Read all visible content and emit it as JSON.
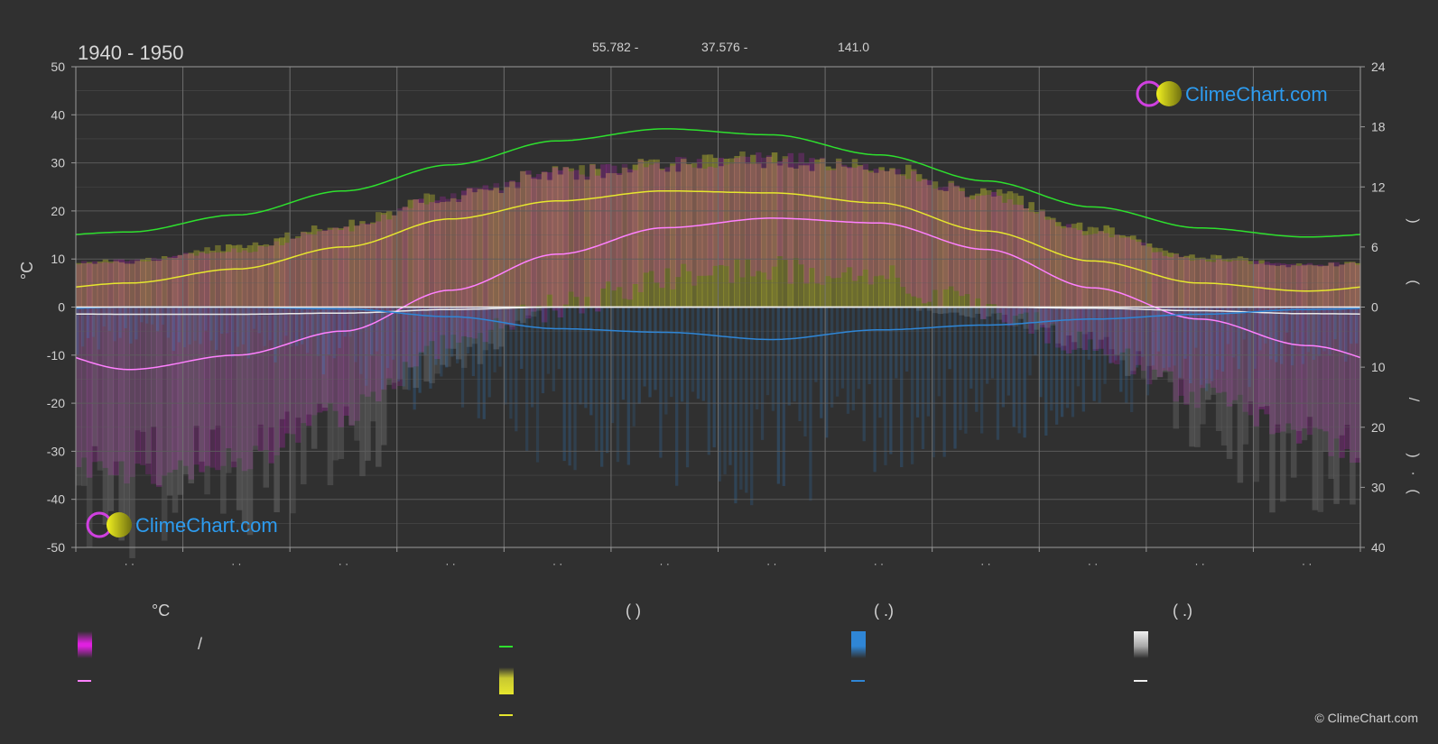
{
  "header": {
    "period": "1940 - 1950",
    "lat": "55.782 -",
    "lon": "37.576 -",
    "elev": "141.0"
  },
  "brand": {
    "name": "ClimeChart.com",
    "copyright": "© ClimeChart.com"
  },
  "colors": {
    "background": "#303030",
    "daylight": "#2ee02e",
    "sunshine": "#e6e62e",
    "temp_max": "#ff80ff",
    "temp_band": "#e020e0",
    "precip": "#2f86d6",
    "snow": "#e8e8e8",
    "brand_text": "#2d9cf0"
  },
  "chart_data": {
    "type": "line",
    "left_axis": {
      "unit": "°C",
      "ylim": [
        -50,
        50
      ],
      "ticks": [
        50,
        40,
        30,
        20,
        10,
        0,
        -10,
        -20,
        -30,
        -40,
        -50
      ]
    },
    "right_axis_top": {
      "ylim": [
        0,
        24
      ],
      "ticks": [
        24,
        18,
        12,
        6,
        0
      ],
      "label_glyphs": [
        "(",
        ")"
      ]
    },
    "right_axis_bottom": {
      "ylim": [
        0,
        40
      ],
      "ticks": [
        0,
        10,
        20,
        30,
        40
      ],
      "label_glyphs": [
        "/",
        "(",
        "·",
        ")"
      ]
    },
    "x_tick_labels": [
      "· ·",
      "· ·",
      "· ·",
      "· ·",
      "· ·",
      "· ·",
      "· ·",
      "· ·",
      "· ·",
      "· ·",
      "· ·",
      "· ·"
    ],
    "x": [
      0,
      1,
      2,
      3,
      4,
      5,
      6,
      7,
      8,
      9,
      10,
      11
    ],
    "series": [
      {
        "key": "daylight",
        "axis": "right_top",
        "values": [
          7.5,
          9.2,
          11.6,
          14.2,
          16.6,
          17.8,
          17.2,
          15.2,
          12.6,
          10.0,
          7.9,
          7.0
        ]
      },
      {
        "key": "sunshine",
        "axis": "right_top",
        "values": [
          2.4,
          3.8,
          6.0,
          8.8,
          10.6,
          11.6,
          11.4,
          10.4,
          7.6,
          4.6,
          2.4,
          1.6
        ]
      },
      {
        "key": "temp_mean",
        "axis": "left",
        "values": [
          -13,
          -10,
          -5,
          3.5,
          11,
          16.5,
          18.5,
          17.5,
          12,
          4,
          -2.5,
          -8
        ]
      },
      {
        "key": "snow_mean",
        "axis": "right_bottom",
        "values": [
          1.2,
          1.2,
          1.0,
          0.4,
          0.0,
          0.0,
          0.0,
          0.0,
          0.0,
          0.2,
          0.6,
          1.1
        ]
      },
      {
        "key": "precip_mean",
        "axis": "right_bottom",
        "values": [
          0.0,
          0.0,
          0.3,
          1.6,
          3.6,
          4.2,
          5.4,
          3.8,
          3.0,
          2.0,
          1.2,
          0.4
        ]
      }
    ],
    "bands": {
      "temp_band_top": [
        10,
        12,
        17,
        24,
        29,
        31,
        32,
        30,
        24,
        16,
        10,
        9
      ],
      "temp_band_bottom": [
        -35,
        -32,
        -22,
        -8,
        0,
        6,
        8,
        6,
        0,
        -8,
        -18,
        -28
      ],
      "sunshine_area_top": [
        10,
        13,
        18,
        24,
        29,
        31,
        32,
        30,
        25,
        17,
        11,
        9
      ],
      "precip_bars_depth": [
        6,
        8,
        12,
        18,
        25,
        28,
        32,
        26,
        22,
        18,
        14,
        10
      ],
      "snow_bars_depth": [
        40,
        38,
        30,
        12,
        0,
        0,
        0,
        0,
        2,
        8,
        25,
        36
      ]
    }
  },
  "legend": {
    "col1": {
      "header": "°C",
      "item1": "/"
    },
    "col2": {
      "header": "(          )"
    },
    "col3": {
      "header": "(    .)"
    },
    "col4": {
      "header": "(    .)"
    }
  }
}
